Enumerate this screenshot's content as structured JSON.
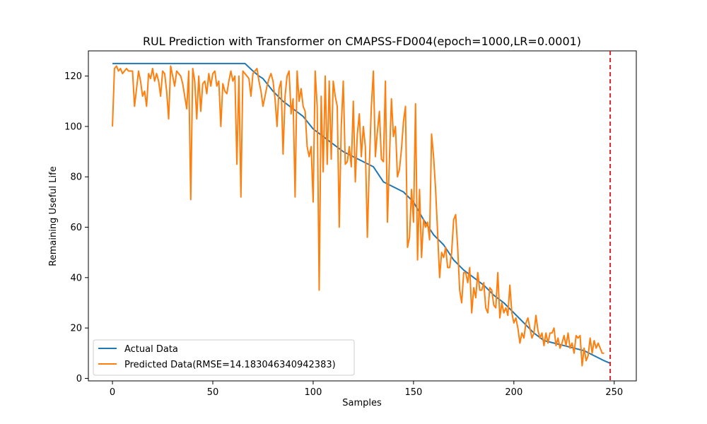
{
  "chart_data": {
    "type": "line",
    "title": "RUL Prediction with Transformer on CMAPSS-FD004(epoch=1000,LR=0.0001)",
    "xlabel": "Samples",
    "ylabel": "Remaining Useful Life",
    "xlim": [
      -12,
      261
    ],
    "ylim": [
      -1,
      130
    ],
    "xticks": [
      0,
      50,
      100,
      150,
      200,
      250
    ],
    "yticks": [
      0,
      20,
      40,
      60,
      80,
      100,
      120
    ],
    "grid": false,
    "legend_position": "lower-left",
    "vline": {
      "x": 248,
      "color": "#d62728",
      "style": "dashed"
    },
    "series": [
      {
        "name": "Actual Data",
        "color": "#1f77b4",
        "keypoints": [
          [
            0,
            125
          ],
          [
            66,
            125
          ],
          [
            70,
            122
          ],
          [
            73,
            120
          ],
          [
            75,
            119
          ],
          [
            80,
            114
          ],
          [
            85,
            110
          ],
          [
            90,
            107
          ],
          [
            95,
            104
          ],
          [
            100,
            99
          ],
          [
            105,
            96
          ],
          [
            110,
            93
          ],
          [
            115,
            90
          ],
          [
            120,
            88
          ],
          [
            125,
            86
          ],
          [
            130,
            84
          ],
          [
            135,
            78
          ],
          [
            140,
            76
          ],
          [
            145,
            74
          ],
          [
            150,
            70
          ],
          [
            155,
            63
          ],
          [
            160,
            57
          ],
          [
            165,
            53
          ],
          [
            170,
            47
          ],
          [
            175,
            43
          ],
          [
            180,
            40
          ],
          [
            185,
            37
          ],
          [
            190,
            33
          ],
          [
            195,
            30
          ],
          [
            200,
            26
          ],
          [
            205,
            22
          ],
          [
            210,
            18
          ],
          [
            215,
            15
          ],
          [
            220,
            14
          ],
          [
            225,
            13
          ],
          [
            230,
            12
          ],
          [
            235,
            11
          ],
          [
            240,
            9
          ],
          [
            245,
            7
          ],
          [
            248,
            6
          ]
        ]
      },
      {
        "name": "Predicted Data(RMSE=14.183046340942383)",
        "color": "#ff7f0e",
        "values": [
          100,
          123,
          124,
          122,
          123,
          121,
          122,
          123,
          122,
          122,
          122,
          108,
          115,
          122,
          118,
          112,
          114,
          108,
          121,
          119,
          123,
          118,
          121,
          118,
          112,
          122,
          121,
          114,
          103,
          124,
          120,
          116,
          122,
          121,
          120,
          117,
          112,
          107,
          122,
          71,
          123,
          118,
          103,
          120,
          106,
          117,
          118,
          113,
          121,
          116,
          121,
          122,
          116,
          118,
          100,
          117,
          114,
          113,
          118,
          122,
          118,
          120,
          85,
          120,
          72,
          122,
          121,
          120,
          119,
          112,
          121,
          122,
          123,
          118,
          114,
          108,
          112,
          116,
          119,
          121,
          118,
          111,
          100,
          115,
          118,
          89,
          112,
          120,
          122,
          105,
          111,
          72,
          122,
          110,
          115,
          108,
          106,
          92,
          88,
          92,
          70,
          122,
          108,
          35,
          112,
          82,
          120,
          85,
          118,
          87,
          118,
          112,
          108,
          60,
          100,
          118,
          85,
          86,
          92,
          84,
          110,
          78,
          97,
          105,
          88,
          100,
          92,
          56,
          85,
          108,
          122,
          88,
          98,
          106,
          87,
          86,
          118,
          62,
          87,
          111,
          96,
          100,
          80,
          83,
          91,
          102,
          108,
          52,
          56,
          75,
          62,
          109,
          47,
          75,
          48,
          63,
          60,
          62,
          55,
          97,
          88,
          75,
          58,
          40,
          50,
          48,
          52,
          44,
          44,
          50,
          63,
          65,
          52,
          35,
          30,
          42,
          42,
          38,
          44,
          26,
          36,
          32,
          42,
          35,
          35,
          38,
          28,
          26,
          36,
          35,
          29,
          28,
          42,
          24,
          30,
          26,
          28,
          25,
          37,
          26,
          22,
          24,
          20,
          14,
          18,
          16,
          22,
          24,
          20,
          16,
          18,
          25,
          19,
          16,
          18,
          13,
          18,
          14,
          18,
          18,
          20,
          13,
          16,
          12,
          14,
          17,
          13,
          18,
          12,
          14,
          10,
          17,
          16,
          17,
          5,
          12,
          7,
          9,
          16,
          10,
          15,
          12,
          14,
          12,
          10,
          10
        ]
      }
    ]
  }
}
